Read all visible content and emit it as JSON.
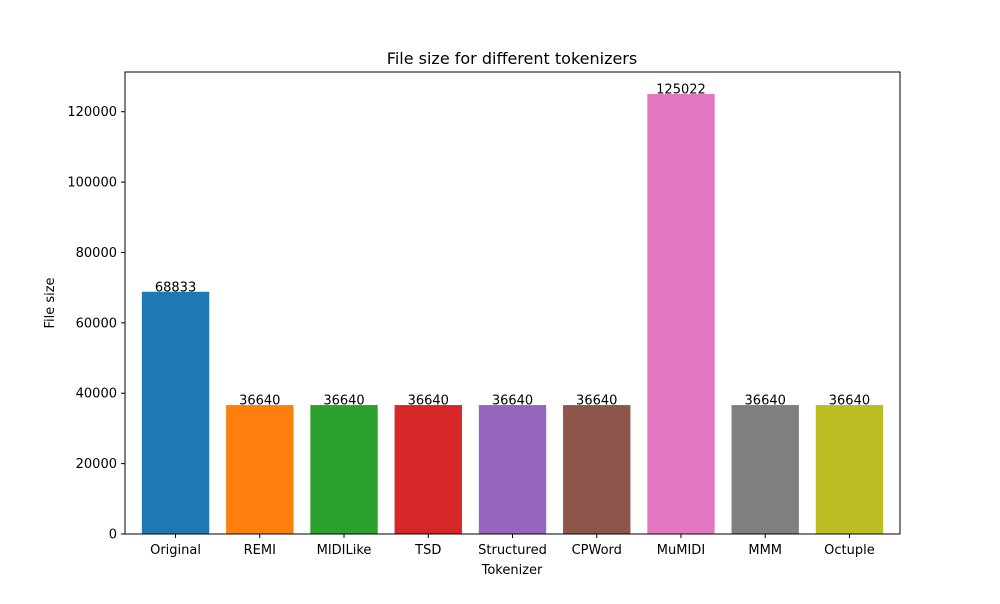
{
  "chart_data": {
    "type": "bar",
    "title": "File size for different tokenizers",
    "xlabel": "Tokenizer",
    "ylabel": "File size",
    "categories": [
      "Original",
      "REMI",
      "MIDILike",
      "TSD",
      "Structured",
      "CPWord",
      "MuMIDI",
      "MMM",
      "Octuple"
    ],
    "values": [
      68833,
      36640,
      36640,
      36640,
      36640,
      36640,
      125022,
      36640,
      36640
    ],
    "data_labels": [
      "68833",
      "36640",
      "36640",
      "36640",
      "36640",
      "36640",
      "125022",
      "36640",
      "36640"
    ],
    "colors": [
      "#1f77b4",
      "#ff7f0e",
      "#2ca02c",
      "#d62728",
      "#9467bd",
      "#8c564b",
      "#e377c2",
      "#7f7f7f",
      "#bcbd22"
    ],
    "ylim": [
      0,
      131281
    ],
    "yticks": [
      0,
      20000,
      40000,
      60000,
      80000,
      100000,
      120000
    ],
    "ytick_labels": [
      "0",
      "20000",
      "40000",
      "60000",
      "80000",
      "100000",
      "120000"
    ],
    "grid": false,
    "legend": "none"
  }
}
